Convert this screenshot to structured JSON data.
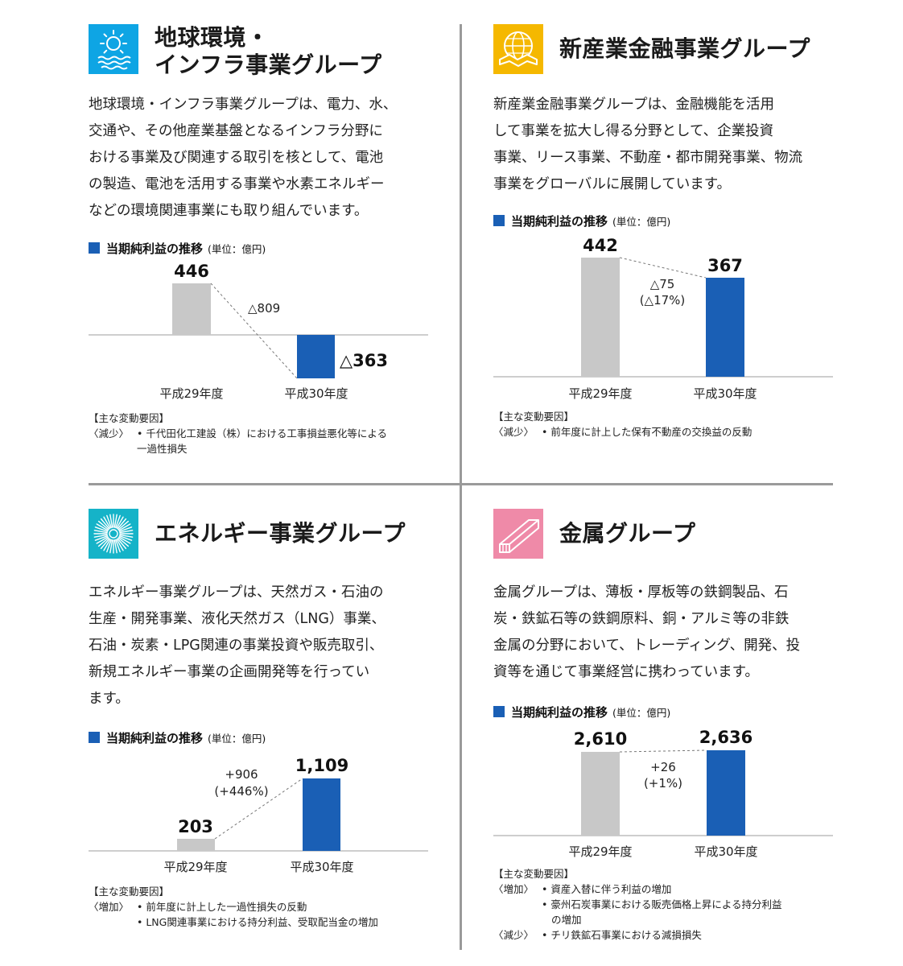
{
  "colors": {
    "bar_prev": "#c8c8c8",
    "bar_curr": "#1a5fb5",
    "accent_square": "#1a5fb5"
  },
  "panels": [
    {
      "id": "environment-infra",
      "icon": {
        "name": "sun-over-water-icon",
        "bg": "#0ea5e4"
      },
      "title_lines": [
        "地球環境・",
        "インフラ事業グループ"
      ],
      "description": [
        "地球環境・インフラ事業グループは、電力、水、",
        "交通や、その他産業基盤となるインフラ分野に",
        "おける事業及び関連する取引を核として、電池",
        "の製造、電池を活用する事業や水素エネルギー",
        "などの環境関連事業にも取り組んでいます。"
      ],
      "chart_title": "当期純利益の推移",
      "chart_unit": "(単位：億円)",
      "notes_title": "【主な変動要因】",
      "notes": [
        {
          "lead": "〈減少〉",
          "text": "• 千代田化工建設（株）における工事損益悪化等による"
        },
        {
          "lead": "",
          "text": "一過性損失"
        }
      ]
    },
    {
      "id": "new-industry-finance",
      "icon": {
        "name": "globe-handshake-icon",
        "bg": "#f5b800"
      },
      "title_lines": [
        "新産業金融事業グループ"
      ],
      "description": [
        "新産業金融事業グループは、金融機能を活用",
        "して事業を拡大し得る分野として、企業投資",
        "事業、リース事業、不動産・都市開発事業、物流",
        "事業をグローバルに展開しています。"
      ],
      "chart_title": "当期純利益の推移",
      "chart_unit": "(単位：億円)",
      "notes_title": "【主な変動要因】",
      "notes": [
        {
          "lead": "〈減少〉",
          "text": "• 前年度に計上した保有不動産の交換益の反動"
        }
      ]
    },
    {
      "id": "energy",
      "icon": {
        "name": "radiating-burst-icon",
        "bg": "#15b3c8"
      },
      "title_lines": [
        "エネルギー事業グループ"
      ],
      "description": [
        "エネルギー事業グループは、天然ガス・石油の",
        "生産・開発事業、液化天然ガス（LNG）事業、",
        "石油・炭素・LPG関連の事業投資や販売取引、",
        "新規エネルギー事業の企画開発等を行ってい",
        "ます。"
      ],
      "chart_title": "当期純利益の推移",
      "chart_unit": "(単位：億円)",
      "notes_title": "【主な変動要因】",
      "notes": [
        {
          "lead": "〈増加〉",
          "text": "• 前年度に計上した一過性損失の反動"
        },
        {
          "lead": "",
          "text": "• LNG関連事業における持分利益、受取配当金の増加"
        }
      ]
    },
    {
      "id": "metals",
      "icon": {
        "name": "steel-beam-icon",
        "bg": "#ef8aa8"
      },
      "title_lines": [
        "金属グループ"
      ],
      "description": [
        "金属グループは、薄板・厚板等の鉄鋼製品、石",
        "炭・鉄鉱石等の鉄鋼原料、銅・アルミ等の非鉄",
        "金属の分野において、トレーディング、開発、投",
        "資等を通じて事業経営に携わっています。"
      ],
      "chart_title": "当期純利益の推移",
      "chart_unit": "(単位：億円)",
      "notes_title": "【主な変動要因】",
      "notes": [
        {
          "lead": "〈増加〉",
          "text": "• 資産入替に伴う利益の増加"
        },
        {
          "lead": "",
          "text": "• 豪州石炭事業における販売価格上昇による持分利益"
        },
        {
          "lead": "",
          "text": "の増加"
        },
        {
          "lead": "〈減少〉",
          "text": "• チリ鉄鉱石事業における減損損失"
        }
      ]
    }
  ],
  "chart_data": [
    {
      "type": "bar",
      "categories": [
        "平成29年度",
        "平成30年度"
      ],
      "values": [
        446,
        -363
      ],
      "value_labels": [
        "446",
        "△363"
      ],
      "change_labels": [
        "△809"
      ],
      "title": "当期純利益の推移",
      "unit": "(単位：億円)",
      "ylim": [
        -363,
        446
      ]
    },
    {
      "type": "bar",
      "categories": [
        "平成29年度",
        "平成30年度"
      ],
      "values": [
        442,
        367
      ],
      "value_labels": [
        "442",
        "367"
      ],
      "change_labels": [
        "△75",
        "(△17%)"
      ],
      "title": "当期純利益の推移",
      "unit": "(単位：億円)",
      "ylim": [
        0,
        442
      ]
    },
    {
      "type": "bar",
      "categories": [
        "平成29年度",
        "平成30年度"
      ],
      "values": [
        203,
        1109
      ],
      "value_labels": [
        "203",
        "1,109"
      ],
      "change_labels": [
        "+906",
        "(+446%)"
      ],
      "title": "当期純利益の推移",
      "unit": "(単位：億円)",
      "ylim": [
        0,
        1109
      ]
    },
    {
      "type": "bar",
      "categories": [
        "平成29年度",
        "平成30年度"
      ],
      "values": [
        2610,
        2636
      ],
      "value_labels": [
        "2,610",
        "2,636"
      ],
      "change_labels": [
        "+26",
        "(+1%)"
      ],
      "title": "当期純利益の推移",
      "unit": "(単位：億円)",
      "ylim": [
        0,
        2636
      ]
    }
  ]
}
